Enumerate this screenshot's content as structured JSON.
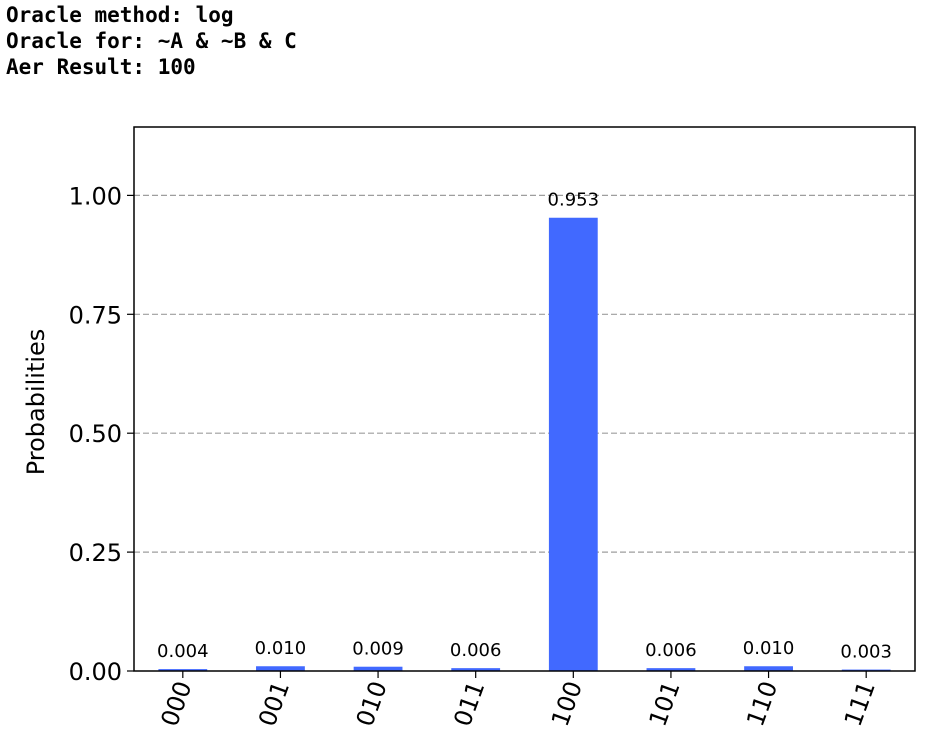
{
  "console": {
    "lines": [
      "Oracle method: log",
      "Oracle for: ~A & ~B & C",
      "Aer Result: 100"
    ]
  },
  "chart_data": {
    "type": "bar",
    "categories": [
      "000",
      "001",
      "010",
      "011",
      "100",
      "101",
      "110",
      "111"
    ],
    "values": [
      0.004,
      0.01,
      0.009,
      0.006,
      0.953,
      0.006,
      0.01,
      0.003
    ],
    "value_labels": [
      "0.004",
      "0.010",
      "0.009",
      "0.006",
      "0.953",
      "0.006",
      "0.010",
      "0.003"
    ],
    "title": "",
    "xlabel": "",
    "ylabel": "Probabilities",
    "ylim": [
      0,
      1.1438
    ],
    "yticks": [
      0.0,
      0.25,
      0.5,
      0.75,
      1.0
    ],
    "ytick_labels": [
      "0.00",
      "0.25",
      "0.50",
      "0.75",
      "1.00"
    ],
    "grid": "horizontal-dashed",
    "bar_color": "#4169ff",
    "grid_color": "#9e9e9e",
    "xtick_rotation_deg": -70
  }
}
